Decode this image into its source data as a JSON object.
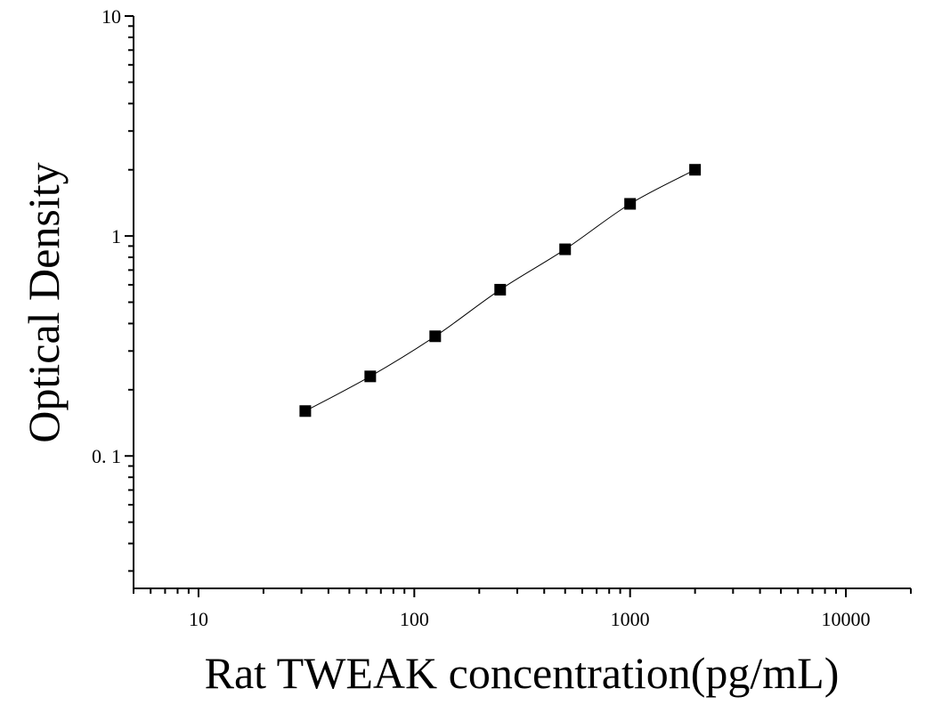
{
  "chart_data": {
    "type": "scatter",
    "title": "",
    "xlabel": "Rat TWEAK concentration(pg/mL)",
    "ylabel": "Optical Density",
    "x_scale": "log",
    "y_scale": "log",
    "xlim": [
      5,
      20000
    ],
    "ylim": [
      0.025,
      10
    ],
    "grid": false,
    "x_ticks": [
      {
        "value": 10,
        "label": "10"
      },
      {
        "value": 100,
        "label": "100"
      },
      {
        "value": 1000,
        "label": "1000"
      },
      {
        "value": 10000,
        "label": "10000"
      }
    ],
    "y_ticks": [
      {
        "value": 0.1,
        "label": "0. 1"
      },
      {
        "value": 1,
        "label": "1"
      },
      {
        "value": 10,
        "label": "10"
      }
    ],
    "series": [
      {
        "x": [
          31.25,
          62.5,
          125,
          250,
          500,
          1000,
          2000
        ],
        "y": [
          0.16,
          0.23,
          0.35,
          0.57,
          0.87,
          1.4,
          2.0
        ],
        "marker": "square",
        "fit_curve": true
      }
    ],
    "colors": {
      "marker": "#000000",
      "curve": "#000000",
      "axis": "#000000"
    }
  }
}
